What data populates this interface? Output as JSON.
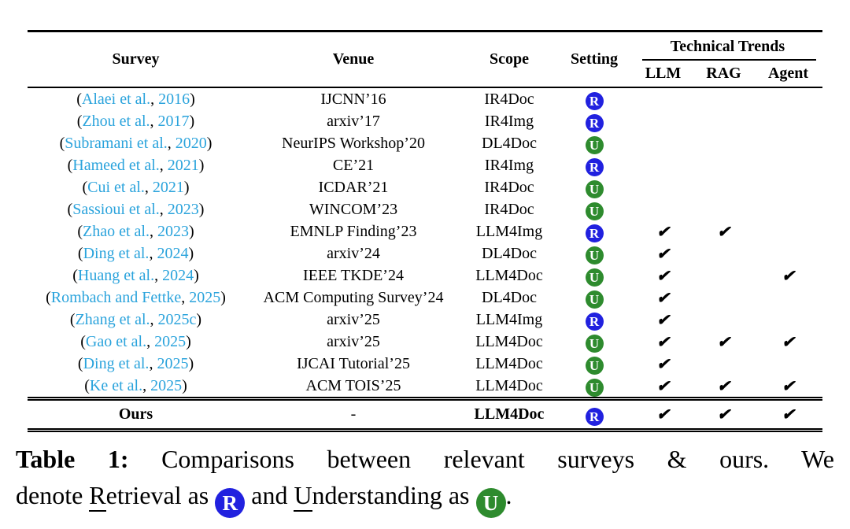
{
  "colors": {
    "citation": "#2AA3DC",
    "retrieval_badge": "#2121DF",
    "understanding_badge": "#2E8B2E"
  },
  "table": {
    "headers": {
      "survey": "Survey",
      "venue": "Venue",
      "scope": "Scope",
      "setting": "Setting",
      "technical_trends": "Technical Trends",
      "llm": "LLM",
      "rag": "RAG",
      "agent": "Agent"
    },
    "checkmark": "✔",
    "rows": [
      {
        "author": "Alaei et al.",
        "year": "2016",
        "venue": "IJCNN’16",
        "scope": "IR4Doc",
        "setting": "R",
        "llm": false,
        "rag": false,
        "agent": false
      },
      {
        "author": "Zhou et al.",
        "year": "2017",
        "venue": "arxiv’17",
        "scope": "IR4Img",
        "setting": "R",
        "llm": false,
        "rag": false,
        "agent": false
      },
      {
        "author": "Subramani et al.",
        "year": "2020",
        "venue": "NeurIPS Workshop’20",
        "scope": "DL4Doc",
        "setting": "U",
        "llm": false,
        "rag": false,
        "agent": false
      },
      {
        "author": "Hameed et al.",
        "year": "2021",
        "venue": "CE’21",
        "scope": "IR4Img",
        "setting": "R",
        "llm": false,
        "rag": false,
        "agent": false
      },
      {
        "author": "Cui et al.",
        "year": "2021",
        "venue": "ICDAR’21",
        "scope": "IR4Doc",
        "setting": "U",
        "llm": false,
        "rag": false,
        "agent": false
      },
      {
        "author": "Sassioui et al.",
        "year": "2023",
        "venue": "WINCOM’23",
        "scope": "IR4Doc",
        "setting": "U",
        "llm": false,
        "rag": false,
        "agent": false
      },
      {
        "author": "Zhao et al.",
        "year": "2023",
        "venue": "EMNLP Finding’23",
        "scope": "LLM4Img",
        "setting": "R",
        "llm": true,
        "rag": true,
        "agent": false
      },
      {
        "author": "Ding et al.",
        "year": "2024",
        "venue": "arxiv’24",
        "scope": "DL4Doc",
        "setting": "U",
        "llm": true,
        "rag": false,
        "agent": false
      },
      {
        "author": "Huang et al.",
        "year": "2024",
        "venue": "IEEE TKDE’24",
        "scope": "LLM4Doc",
        "setting": "U",
        "llm": true,
        "rag": false,
        "agent": true
      },
      {
        "author": "Rombach and Fettke",
        "year": "2025",
        "venue": "ACM Computing Survey’24",
        "scope": "DL4Doc",
        "setting": "U",
        "llm": true,
        "rag": false,
        "agent": false
      },
      {
        "author": "Zhang et al.",
        "year": "2025c",
        "venue": "arxiv’25",
        "scope": "LLM4Img",
        "setting": "R",
        "llm": true,
        "rag": false,
        "agent": false
      },
      {
        "author": "Gao et al.",
        "year": "2025",
        "venue": "arxiv’25",
        "scope": "LLM4Doc",
        "setting": "U",
        "llm": true,
        "rag": true,
        "agent": true
      },
      {
        "author": "Ding et al.",
        "year": "2025",
        "venue": "IJCAI Tutorial’25",
        "scope": "LLM4Doc",
        "setting": "U",
        "llm": true,
        "rag": false,
        "agent": false
      },
      {
        "author": "Ke et al.",
        "year": "2025",
        "venue": "ACM TOIS’25",
        "scope": "LLM4Doc",
        "setting": "U",
        "llm": true,
        "rag": true,
        "agent": true
      }
    ],
    "ours_row": {
      "survey": "Ours",
      "venue": "-",
      "scope": "LLM4Doc",
      "setting": "R",
      "llm": true,
      "rag": true,
      "agent": true
    }
  },
  "caption": {
    "label": "Table 1:",
    "line1_rest": "Comparisons between relevant surveys & ours. We",
    "denote_word": "denote",
    "retrieval_head": "R",
    "retrieval_tail": "etrieval",
    "as_word": "as",
    "badge_r": "R",
    "and_word": "and",
    "understanding_head": "U",
    "understanding_tail": "nderstanding",
    "as_word2": "as",
    "badge_u": "U",
    "period": "."
  }
}
